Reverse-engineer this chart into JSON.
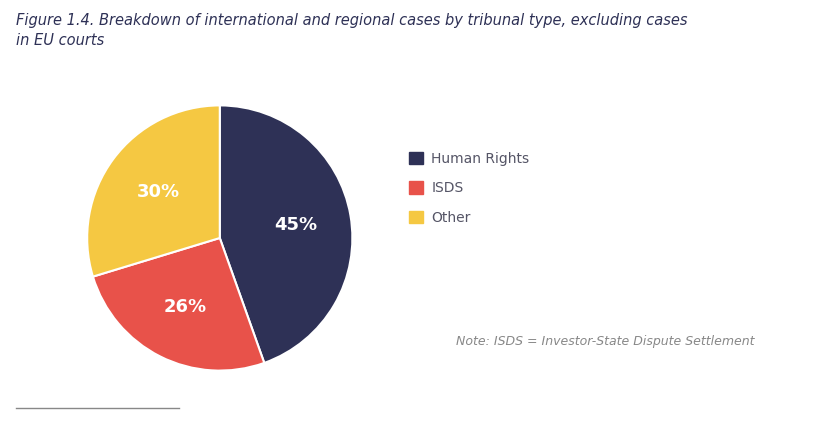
{
  "title": "Figure 1.4. Breakdown of international and regional cases by tribunal type, excluding cases\nin EU courts",
  "slices": [
    45,
    26,
    30
  ],
  "colors": [
    "#2e3156",
    "#e8524a",
    "#f5c842"
  ],
  "pct_labels": [
    "45%",
    "26%",
    "30%"
  ],
  "legend_labels": [
    "Human Rights",
    "ISDS",
    "Other"
  ],
  "legend_colors": [
    "#2e3156",
    "#e8524a",
    "#f5c842"
  ],
  "note_text": "Note: ISDS = Investor-State Dispute Settlement",
  "background_color": "#ffffff",
  "title_fontsize": 10.5,
  "legend_fontsize": 10,
  "note_fontsize": 9,
  "pct_fontsize": 13,
  "startangle": 90,
  "title_color": "#2e3156",
  "legend_text_color": "#555566",
  "note_color": "#888888"
}
